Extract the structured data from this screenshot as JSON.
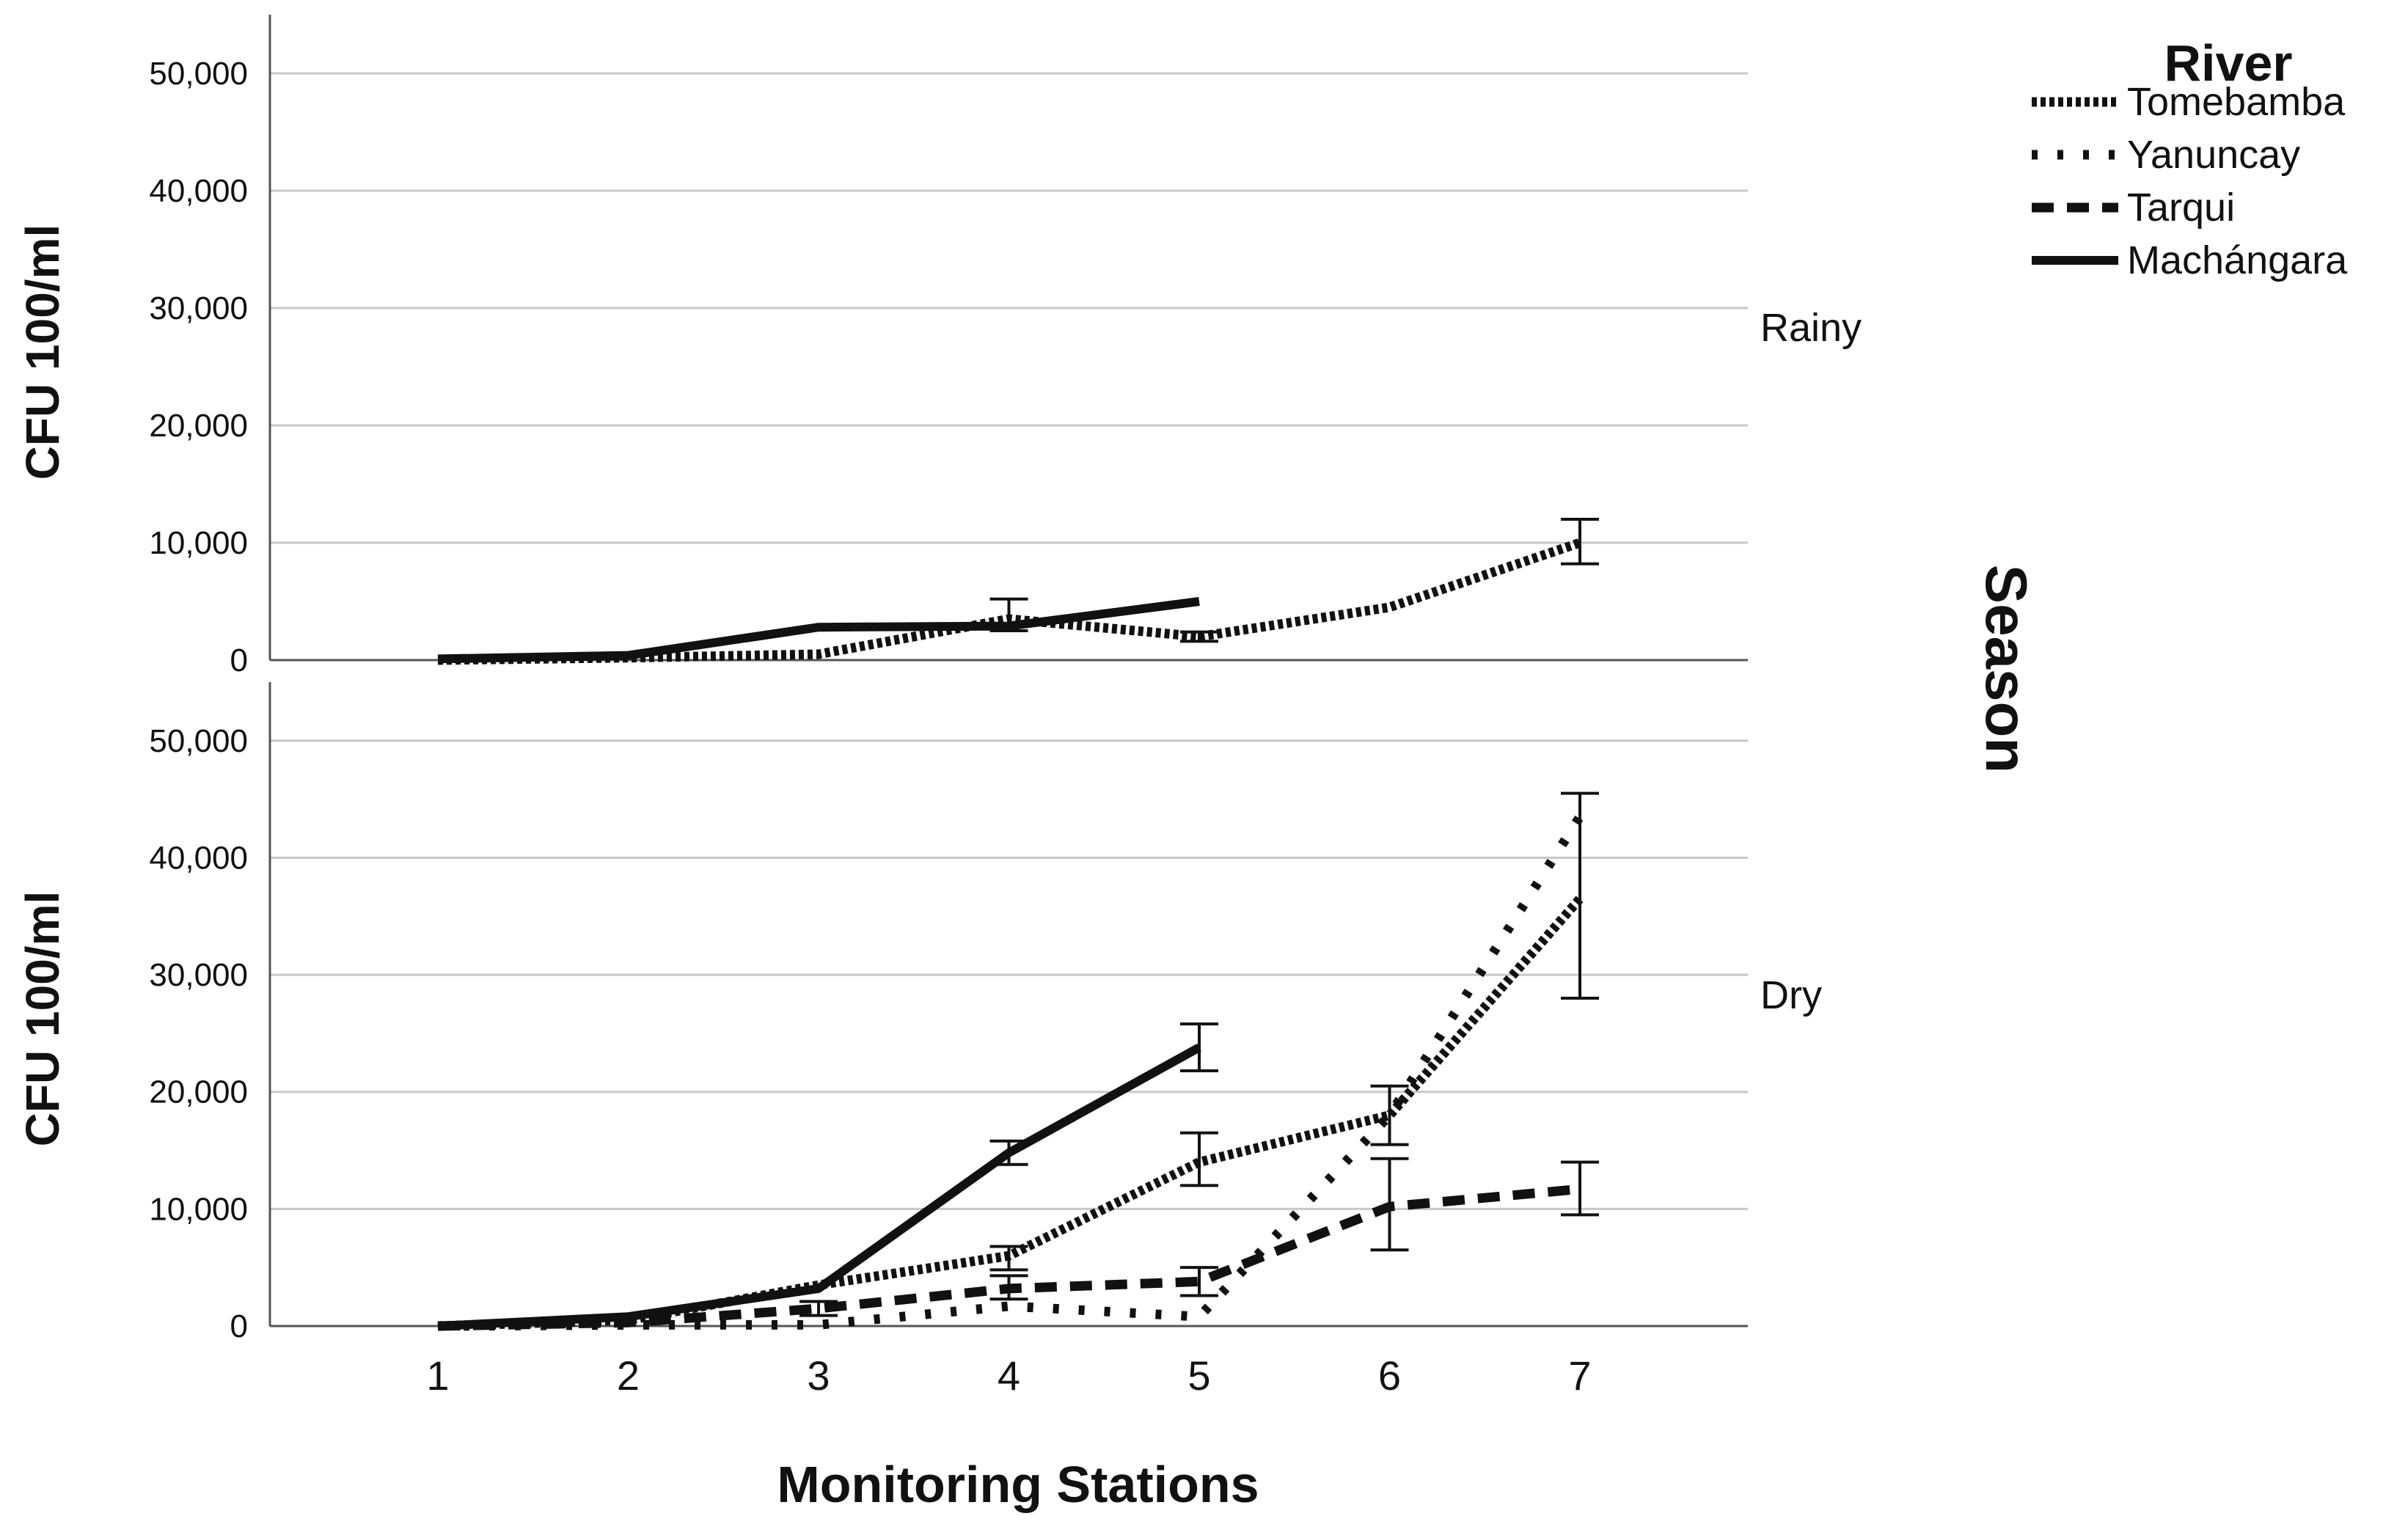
{
  "chart_data": {
    "type": "line",
    "xlabel": "Monitoring Stations",
    "ylabel": "CFU 100/ml",
    "facet_title": "Season",
    "x": [
      1,
      2,
      3,
      4,
      5,
      6,
      7
    ],
    "x_tick_labels": [
      "1",
      "2",
      "3",
      "4",
      "5",
      "6",
      "7"
    ],
    "ylim": [
      0,
      55000
    ],
    "y_ticks": [
      0,
      10000,
      20000,
      30000,
      40000,
      50000
    ],
    "y_tick_labels": [
      "0",
      "10,000",
      "20,000",
      "30,000",
      "40,000",
      "50,000"
    ],
    "grid": true,
    "legend": {
      "title": "River",
      "position": "top-right",
      "entries": [
        {
          "name": "Tomebamba",
          "style": "dense-dot"
        },
        {
          "name": "Yanuncay",
          "style": "sparse-dot"
        },
        {
          "name": "Tarqui",
          "style": "dash"
        },
        {
          "name": "Machángara",
          "style": "solid"
        }
      ]
    },
    "panels": [
      {
        "season": "Rainy",
        "series": [
          {
            "name": "Tomebamba",
            "points": [
              {
                "x": 1,
                "y": 0
              },
              {
                "x": 2,
                "y": 200
              },
              {
                "x": 3,
                "y": 500
              },
              {
                "x": 4,
                "y": 3500,
                "err": [
                  2500,
                  5200
                ]
              },
              {
                "x": 5,
                "y": 2000,
                "err": [
                  1600,
                  2400
                ]
              },
              {
                "x": 6,
                "y": 4500
              },
              {
                "x": 7,
                "y": 10000,
                "err": [
                  8200,
                  12000
                ]
              }
            ]
          },
          {
            "name": "Machángara",
            "points": [
              {
                "x": 1,
                "y": 100
              },
              {
                "x": 2,
                "y": 400
              },
              {
                "x": 3,
                "y": 2800
              },
              {
                "x": 4,
                "y": 2900
              },
              {
                "x": 5,
                "y": 5000
              }
            ]
          }
        ]
      },
      {
        "season": "Dry",
        "series": [
          {
            "name": "Tomebamba",
            "points": [
              {
                "x": 1,
                "y": 0
              },
              {
                "x": 2,
                "y": 500
              },
              {
                "x": 3,
                "y": 3500
              },
              {
                "x": 4,
                "y": 6000,
                "err": [
                  4800,
                  6800
                ]
              },
              {
                "x": 5,
                "y": 14000,
                "err": [
                  12000,
                  16500
                ]
              },
              {
                "x": 6,
                "y": 18000,
                "err": [
                  15500,
                  20500
                ]
              },
              {
                "x": 7,
                "y": 36500,
                "err": [
                  28000,
                  45500
                ]
              }
            ]
          },
          {
            "name": "Yanuncay",
            "points": [
              {
                "x": 1,
                "y": 0
              },
              {
                "x": 2,
                "y": 100
              },
              {
                "x": 3,
                "y": 100
              },
              {
                "x": 4,
                "y": 1700
              },
              {
                "x": 5,
                "y": 800
              },
              {
                "x": 6,
                "y": 18000
              },
              {
                "x": 7,
                "y": 43500
              }
            ]
          },
          {
            "name": "Tarqui",
            "points": [
              {
                "x": 1,
                "y": 0
              },
              {
                "x": 2,
                "y": 300
              },
              {
                "x": 3,
                "y": 1500,
                "err": [
                  900,
                  2100
                ]
              },
              {
                "x": 4,
                "y": 3200,
                "err": [
                  2300,
                  4300
                ]
              },
              {
                "x": 5,
                "y": 3800,
                "err": [
                  2600,
                  5000
                ]
              },
              {
                "x": 6,
                "y": 10200,
                "err": [
                  6500,
                  14300
                ]
              },
              {
                "x": 7,
                "y": 11700,
                "err": [
                  9500,
                  14000
                ]
              }
            ]
          },
          {
            "name": "Machángara",
            "points": [
              {
                "x": 1,
                "y": 0
              },
              {
                "x": 2,
                "y": 800
              },
              {
                "x": 3,
                "y": 3200
              },
              {
                "x": 4,
                "y": 14800,
                "err": [
                  13800,
                  15800
                ]
              },
              {
                "x": 5,
                "y": 23800,
                "err": [
                  21800,
                  25800
                ]
              }
            ]
          }
        ]
      }
    ]
  }
}
